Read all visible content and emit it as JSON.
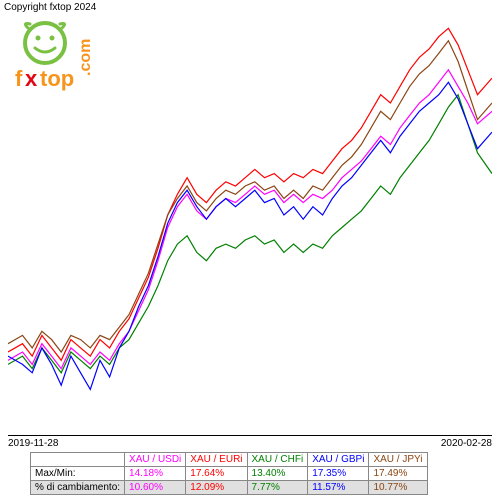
{
  "copyright": "Copyright fxtop 2024",
  "logo": {
    "brand": "fxtop",
    "dot": ".",
    "tld": "com",
    "face_color": "#7ac143",
    "x_color": "#e30613",
    "text_color": "#f7941d"
  },
  "chart": {
    "type": "line",
    "xlim": [
      0,
      100
    ],
    "ylim": [
      0,
      100
    ],
    "x_start_label": "2019-11-28",
    "x_end_label": "2020-02-28",
    "background": "#ffffff",
    "line_width": 1.2,
    "series": [
      {
        "name": "XAU/USDi",
        "color": "#ff00ff",
        "points": [
          [
            0,
            18
          ],
          [
            3,
            20
          ],
          [
            5,
            17
          ],
          [
            7,
            22
          ],
          [
            9,
            19
          ],
          [
            11,
            16
          ],
          [
            13,
            21
          ],
          [
            15,
            19
          ],
          [
            17,
            17
          ],
          [
            19,
            20
          ],
          [
            21,
            18
          ],
          [
            23,
            22
          ],
          [
            25,
            25
          ],
          [
            27,
            30
          ],
          [
            29,
            35
          ],
          [
            31,
            42
          ],
          [
            33,
            50
          ],
          [
            35,
            55
          ],
          [
            37,
            58
          ],
          [
            39,
            54
          ],
          [
            41,
            52
          ],
          [
            43,
            55
          ],
          [
            45,
            57
          ],
          [
            47,
            56
          ],
          [
            49,
            58
          ],
          [
            51,
            60
          ],
          [
            53,
            58
          ],
          [
            55,
            59
          ],
          [
            57,
            56
          ],
          [
            59,
            58
          ],
          [
            61,
            56
          ],
          [
            63,
            58
          ],
          [
            65,
            57
          ],
          [
            67,
            59
          ],
          [
            69,
            62
          ],
          [
            71,
            64
          ],
          [
            73,
            66
          ],
          [
            75,
            69
          ],
          [
            77,
            72
          ],
          [
            79,
            70
          ],
          [
            81,
            74
          ],
          [
            83,
            77
          ],
          [
            85,
            80
          ],
          [
            87,
            82
          ],
          [
            89,
            85
          ],
          [
            91,
            88
          ],
          [
            93,
            84
          ],
          [
            95,
            80
          ],
          [
            97,
            75
          ],
          [
            100,
            78
          ]
        ]
      },
      {
        "name": "XAU/EURi",
        "color": "#ff0000",
        "points": [
          [
            0,
            20
          ],
          [
            3,
            22
          ],
          [
            5,
            19
          ],
          [
            7,
            24
          ],
          [
            9,
            21
          ],
          [
            11,
            18
          ],
          [
            13,
            23
          ],
          [
            15,
            21
          ],
          [
            17,
            19
          ],
          [
            19,
            23
          ],
          [
            21,
            21
          ],
          [
            23,
            25
          ],
          [
            25,
            28
          ],
          [
            27,
            33
          ],
          [
            29,
            38
          ],
          [
            31,
            45
          ],
          [
            33,
            53
          ],
          [
            35,
            58
          ],
          [
            37,
            62
          ],
          [
            39,
            58
          ],
          [
            41,
            56
          ],
          [
            43,
            59
          ],
          [
            45,
            61
          ],
          [
            47,
            60
          ],
          [
            49,
            62
          ],
          [
            51,
            64
          ],
          [
            53,
            62
          ],
          [
            55,
            63
          ],
          [
            57,
            61
          ],
          [
            59,
            63
          ],
          [
            61,
            62
          ],
          [
            63,
            64
          ],
          [
            65,
            63
          ],
          [
            67,
            66
          ],
          [
            69,
            69
          ],
          [
            71,
            71
          ],
          [
            73,
            74
          ],
          [
            75,
            78
          ],
          [
            77,
            82
          ],
          [
            79,
            80
          ],
          [
            81,
            84
          ],
          [
            83,
            88
          ],
          [
            85,
            91
          ],
          [
            87,
            93
          ],
          [
            89,
            96
          ],
          [
            91,
            98
          ],
          [
            93,
            94
          ],
          [
            95,
            88
          ],
          [
            97,
            82
          ],
          [
            100,
            86
          ]
        ]
      },
      {
        "name": "XAU/CHFi",
        "color": "#008000",
        "points": [
          [
            0,
            17
          ],
          [
            3,
            19
          ],
          [
            5,
            16
          ],
          [
            7,
            21
          ],
          [
            9,
            18
          ],
          [
            11,
            15
          ],
          [
            13,
            20
          ],
          [
            15,
            18
          ],
          [
            17,
            16
          ],
          [
            19,
            19
          ],
          [
            21,
            17
          ],
          [
            23,
            21
          ],
          [
            25,
            23
          ],
          [
            27,
            27
          ],
          [
            29,
            31
          ],
          [
            31,
            36
          ],
          [
            33,
            42
          ],
          [
            35,
            46
          ],
          [
            37,
            48
          ],
          [
            39,
            44
          ],
          [
            41,
            42
          ],
          [
            43,
            45
          ],
          [
            45,
            46
          ],
          [
            47,
            45
          ],
          [
            49,
            47
          ],
          [
            51,
            48
          ],
          [
            53,
            46
          ],
          [
            55,
            47
          ],
          [
            57,
            44
          ],
          [
            59,
            46
          ],
          [
            61,
            44
          ],
          [
            63,
            46
          ],
          [
            65,
            45
          ],
          [
            67,
            48
          ],
          [
            69,
            50
          ],
          [
            71,
            52
          ],
          [
            73,
            54
          ],
          [
            75,
            57
          ],
          [
            77,
            60
          ],
          [
            79,
            58
          ],
          [
            81,
            62
          ],
          [
            83,
            65
          ],
          [
            85,
            68
          ],
          [
            87,
            71
          ],
          [
            89,
            75
          ],
          [
            91,
            79
          ],
          [
            93,
            82
          ],
          [
            95,
            75
          ],
          [
            97,
            68
          ],
          [
            100,
            63
          ]
        ]
      },
      {
        "name": "XAU/GBPi",
        "color": "#0000ff",
        "points": [
          [
            0,
            19
          ],
          [
            3,
            17
          ],
          [
            5,
            15
          ],
          [
            7,
            21
          ],
          [
            9,
            17
          ],
          [
            11,
            12
          ],
          [
            13,
            19
          ],
          [
            15,
            15
          ],
          [
            17,
            11
          ],
          [
            19,
            18
          ],
          [
            21,
            14
          ],
          [
            23,
            21
          ],
          [
            25,
            25
          ],
          [
            27,
            31
          ],
          [
            29,
            36
          ],
          [
            31,
            43
          ],
          [
            33,
            51
          ],
          [
            35,
            56
          ],
          [
            37,
            59
          ],
          [
            39,
            55
          ],
          [
            41,
            52
          ],
          [
            43,
            55
          ],
          [
            45,
            57
          ],
          [
            47,
            55
          ],
          [
            49,
            57
          ],
          [
            51,
            59
          ],
          [
            53,
            56
          ],
          [
            55,
            57
          ],
          [
            57,
            53
          ],
          [
            59,
            55
          ],
          [
            61,
            52
          ],
          [
            63,
            55
          ],
          [
            65,
            53
          ],
          [
            67,
            57
          ],
          [
            69,
            60
          ],
          [
            71,
            62
          ],
          [
            73,
            65
          ],
          [
            75,
            68
          ],
          [
            77,
            71
          ],
          [
            79,
            68
          ],
          [
            81,
            72
          ],
          [
            83,
            75
          ],
          [
            85,
            78
          ],
          [
            87,
            80
          ],
          [
            89,
            82
          ],
          [
            91,
            85
          ],
          [
            93,
            81
          ],
          [
            95,
            75
          ],
          [
            97,
            69
          ],
          [
            100,
            73
          ]
        ]
      },
      {
        "name": "XAU/JPYi",
        "color": "#8b4513",
        "points": [
          [
            0,
            22
          ],
          [
            3,
            24
          ],
          [
            5,
            21
          ],
          [
            7,
            25
          ],
          [
            9,
            23
          ],
          [
            11,
            20
          ],
          [
            13,
            24
          ],
          [
            15,
            23
          ],
          [
            17,
            21
          ],
          [
            19,
            24
          ],
          [
            21,
            23
          ],
          [
            23,
            26
          ],
          [
            25,
            29
          ],
          [
            27,
            34
          ],
          [
            29,
            39
          ],
          [
            31,
            46
          ],
          [
            33,
            53
          ],
          [
            35,
            57
          ],
          [
            37,
            60
          ],
          [
            39,
            56
          ],
          [
            41,
            54
          ],
          [
            43,
            57
          ],
          [
            45,
            59
          ],
          [
            47,
            58
          ],
          [
            49,
            60
          ],
          [
            51,
            61
          ],
          [
            53,
            59
          ],
          [
            55,
            60
          ],
          [
            57,
            57
          ],
          [
            59,
            59
          ],
          [
            61,
            57
          ],
          [
            63,
            60
          ],
          [
            65,
            59
          ],
          [
            67,
            62
          ],
          [
            69,
            65
          ],
          [
            71,
            67
          ],
          [
            73,
            70
          ],
          [
            75,
            74
          ],
          [
            77,
            78
          ],
          [
            79,
            76
          ],
          [
            81,
            80
          ],
          [
            83,
            84
          ],
          [
            85,
            87
          ],
          [
            87,
            89
          ],
          [
            89,
            92
          ],
          [
            91,
            95
          ],
          [
            93,
            90
          ],
          [
            95,
            83
          ],
          [
            97,
            76
          ],
          [
            100,
            80
          ]
        ]
      }
    ]
  },
  "table": {
    "header_blank": "",
    "row1_label": "Max/Min:",
    "row2_label": "% di cambiamento:",
    "columns": [
      {
        "label": "XAU / USDi",
        "color": "#ff00ff",
        "maxmin": "14.18%",
        "change": "10.60%"
      },
      {
        "label": "XAU / EURi",
        "color": "#ff0000",
        "maxmin": "17.64%",
        "change": "12.09%"
      },
      {
        "label": "XAU / CHFi",
        "color": "#008000",
        "maxmin": "13.40%",
        "change": "7.77%"
      },
      {
        "label": "XAU / GBPi",
        "color": "#0000ff",
        "maxmin": "17.35%",
        "change": "11.57%"
      },
      {
        "label": "XAU / JPYi",
        "color": "#8b4513",
        "maxmin": "17.49%",
        "change": "10.77%"
      }
    ]
  }
}
